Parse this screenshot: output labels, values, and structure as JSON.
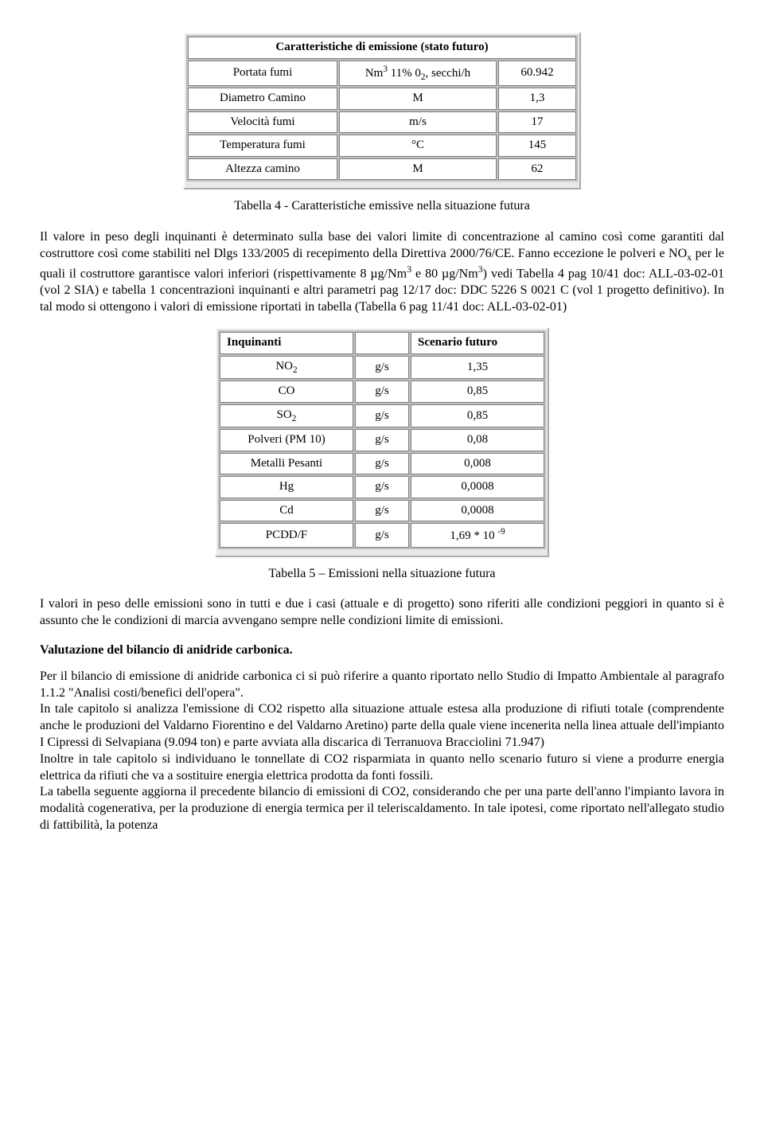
{
  "table1": {
    "title": "Caratteristiche di emissione (stato futuro)",
    "rows": [
      {
        "label": "Portata fumi",
        "unit_html": "Nm<sup>3</sup> 11% 0<sub>2</sub>, secchi/h",
        "value": "60.942"
      },
      {
        "label": "Diametro Camino",
        "unit_html": "M",
        "value": "1,3"
      },
      {
        "label": "Velocità fumi",
        "unit_html": "m/s",
        "value": "17"
      },
      {
        "label": "Temperatura fumi",
        "unit_html": "°C",
        "value": "145"
      },
      {
        "label": "Altezza camino",
        "unit_html": "M",
        "value": "62"
      }
    ],
    "caption": "Tabella 4 - Caratteristiche emissive nella situazione futura",
    "col_widths": [
      "170px",
      "180px",
      "80px"
    ]
  },
  "para1_html": "Il valore in peso degli inquinanti è determinato sulla base dei valori limite di concentrazione al camino così come garantiti dal costruttore così come stabiliti nel Dlgs 133/2005 di recepimento della Direttiva 2000/76/CE. Fanno eccezione le polveri e NO<sub>x</sub> per le quali il costruttore garantisce valori inferiori (rispettivamente 8 µg/Nm<sup>3</sup> e 80 µg/Nm<sup>3</sup>) vedi Tabella 4 pag 10/41 doc: ALL-03-02-01 (vol 2 SIA) e tabella 1 concentrazioni inquinanti e altri parametri pag 12/17 doc: DDC 5226 S 0021 C (vol 1 progetto definitivo). In tal modo si ottengono i valori di emissione riportati in tabella (Tabella 6 pag 11/41 doc: ALL-03-02-01)",
  "table2": {
    "header": {
      "col1": "Inquinanti",
      "col2": "",
      "col3": "Scenario futuro"
    },
    "rows": [
      {
        "label_html": "NO<sub>2</sub>",
        "unit": "g/s",
        "value": "1,35"
      },
      {
        "label_html": "CO",
        "unit": "g/s",
        "value": "0,85"
      },
      {
        "label_html": "SO<sub>2</sub>",
        "unit": "g/s",
        "value": "0,85"
      },
      {
        "label_html": "Polveri (PM 10)",
        "unit": "g/s",
        "value": "0,08"
      },
      {
        "label_html": "Metalli Pesanti",
        "unit": "g/s",
        "value": "0,008"
      },
      {
        "label_html": "Hg",
        "unit": "g/s",
        "value": "0,0008"
      },
      {
        "label_html": "Cd",
        "unit": "g/s",
        "value": "0,0008"
      },
      {
        "label_html": "PCDD/F",
        "unit": "g/s",
        "value_html": "1,69 * 10 <sup>-9</sup>"
      }
    ],
    "caption": "Tabella 5 – Emissioni nella situazione futura",
    "col_widths": [
      "150px",
      "50px",
      "150px"
    ]
  },
  "para2": "I valori in peso delle emissioni sono in tutti e due i casi (attuale e di progetto) sono riferiti alle condizioni peggiori in quanto si è assunto che le condizioni di marcia avvengano sempre nelle condizioni limite di emissioni.",
  "section_title": "Valutazione del bilancio di anidride carbonica.",
  "para3": "Per il bilancio di emissione di anidride carbonica ci si può riferire a quanto riportato nello Studio di Impatto Ambientale al paragrafo 1.1.2 \"Analisi costi/benefici dell'opera\".",
  "para4": " In tale capitolo si analizza l'emissione di CO2 rispetto alla situazione attuale estesa alla produzione di rifiuti totale (comprendente anche le produzioni del Valdarno Fiorentino e del Valdarno Aretino) parte della quale viene incenerita nella linea attuale dell'impianto I Cipressi di Selvapiana (9.094 ton) e parte avviata alla discarica di Terranuova Bracciolini 71.947)",
  "para5": "Inoltre in tale capitolo si individuano le tonnellate di CO2 risparmiata in quanto nello scenario futuro si viene a produrre energia elettrica da rifiuti che va a sostituire energia elettrica prodotta da fonti fossili.",
  "para6": "La tabella seguente aggiorna il precedente bilancio di emissioni di CO2, considerando che per una parte dell'anno l'impianto lavora in modalità cogenerativa, per la produzione di energia termica per il teleriscaldamento. In tale ipotesi, come riportato nell'allegato studio di fattibilità, la potenza"
}
